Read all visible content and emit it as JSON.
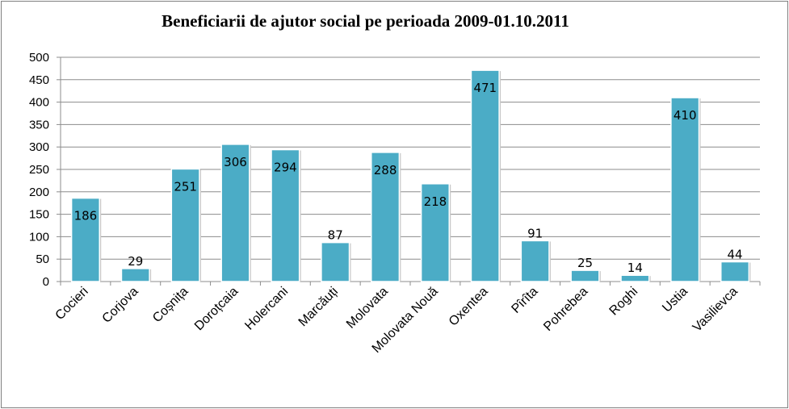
{
  "chart_data": {
    "type": "bar",
    "title": "Beneficiarii de ajutor social pe perioada 2009-01.10.2011",
    "xlabel": "",
    "ylabel": "",
    "categories": [
      "Cocieri",
      "Corjova",
      "Coșnița",
      "Doroțcaia",
      "Holercani",
      "Marcăuți",
      "Molovata",
      "Molovata Nouă",
      "Oxentea",
      "Pîrîta",
      "Pohrebea",
      "Roghi",
      "Ustia",
      "Vasilievca"
    ],
    "values": [
      186,
      29,
      251,
      306,
      294,
      87,
      288,
      218,
      471,
      91,
      25,
      14,
      410,
      44
    ],
    "data_labels": [
      "186",
      "29",
      "251",
      "306",
      "294",
      "87",
      "288",
      "218",
      "471",
      "91",
      "25",
      "14",
      "410",
      "44"
    ],
    "y_ticks": [
      "0",
      "50",
      "100",
      "150",
      "200",
      "250",
      "300",
      "350",
      "400",
      "450",
      "500"
    ],
    "ylim": [
      0,
      500
    ],
    "grid": true,
    "legend": "none",
    "colors": {
      "bar": "#4bacc6",
      "bar_edge": "#3d93ab",
      "grid": "#8c8c8c"
    }
  }
}
